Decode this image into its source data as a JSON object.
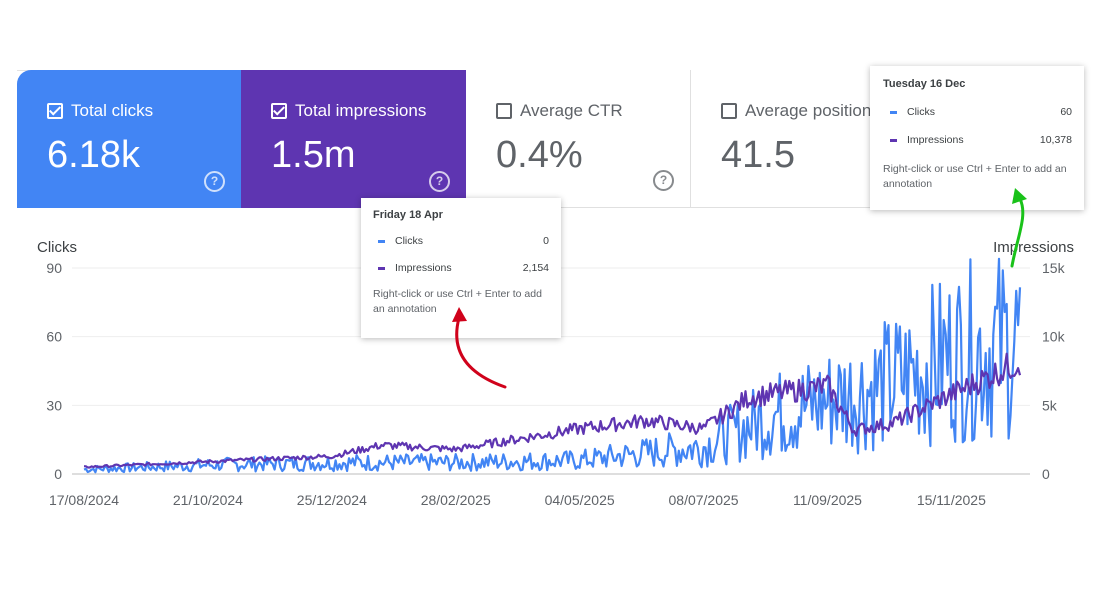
{
  "cards": [
    {
      "label": "Total clicks",
      "value": "6.18k",
      "checked": true
    },
    {
      "label": "Total impressions",
      "value": "1.5m",
      "checked": true
    },
    {
      "label": "Average CTR",
      "value": "0.4%",
      "checked": false
    },
    {
      "label": "Average position",
      "value": "41.5",
      "checked": false
    }
  ],
  "help_glyph": "?",
  "colors": {
    "clicks": "#4285f4",
    "impressions": "#5e35b1"
  },
  "tooltips": [
    {
      "date": "Friday 18 Apr",
      "clicks_label": "Clicks",
      "clicks_value": "0",
      "impr_label": "Impressions",
      "impr_value": "2,154",
      "note": "Right-click or use Ctrl + Enter to add an annotation"
    },
    {
      "date": "Tuesday 16 Dec",
      "clicks_label": "Clicks",
      "clicks_value": "60",
      "impr_label": "Impressions",
      "impr_value": "10,378",
      "note": "Right-click or use Ctrl + Enter to add an annotation"
    }
  ],
  "chart_data": {
    "type": "line",
    "x_start": "17/08/2024",
    "x_end": "21/12/2025",
    "x_tick_labels": [
      "17/08/2024",
      "21/10/2024",
      "25/12/2024",
      "28/02/2025",
      "04/05/2025",
      "08/07/2025",
      "11/09/2025",
      "15/11/2025"
    ],
    "left_axis": {
      "label": "Clicks",
      "ticks": [
        "90",
        "60",
        "30",
        "0"
      ],
      "range": [
        0,
        90
      ]
    },
    "right_axis": {
      "label": "Impressions",
      "ticks": [
        "15k",
        "10k",
        "5k",
        "0"
      ],
      "range": [
        0,
        15000
      ]
    },
    "series": [
      {
        "name": "Clicks",
        "axis": "left",
        "anchors": [
          [
            "17/08/2024",
            2
          ],
          [
            "21/10/2024",
            4
          ],
          [
            "25/12/2024",
            5
          ],
          [
            "28/02/2025",
            5
          ],
          [
            "04/05/2025",
            6
          ],
          [
            "08/07/2025",
            12
          ],
          [
            "11/08/2025",
            25
          ],
          [
            "11/09/2025",
            32
          ],
          [
            "15/10/2025",
            40
          ],
          [
            "15/11/2025",
            52
          ],
          [
            "21/12/2025",
            58
          ]
        ]
      },
      {
        "name": "Impressions",
        "axis": "right",
        "anchors": [
          [
            "17/08/2024",
            500
          ],
          [
            "21/10/2024",
            900
          ],
          [
            "25/12/2024",
            1300
          ],
          [
            "20/01/2025",
            2100
          ],
          [
            "28/02/2025",
            1800
          ],
          [
            "04/05/2025",
            3300
          ],
          [
            "08/06/2025",
            3900
          ],
          [
            "08/07/2025",
            3300
          ],
          [
            "01/08/2025",
            5600
          ],
          [
            "11/09/2025",
            6400
          ],
          [
            "25/09/2025",
            3200
          ],
          [
            "15/10/2025",
            3700
          ],
          [
            "15/11/2025",
            5800
          ],
          [
            "21/12/2025",
            8200
          ]
        ]
      }
    ]
  }
}
